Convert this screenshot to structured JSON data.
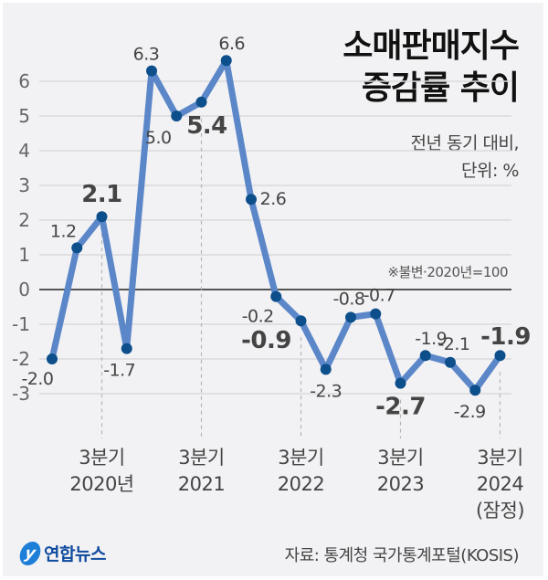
{
  "header": {
    "title_line1": "소매판매지수",
    "title_line2": "증감률 추이",
    "subtitle_line1": "전년 동기 대비,",
    "subtitle_line2": "단위: %"
  },
  "note": "※불변·2020년=100",
  "footer": {
    "logo_text": "연합뉴스",
    "logo_mark": "y",
    "source": "자료: 통계청 국가통계포털(KOSIS)"
  },
  "colors": {
    "line": "#5b87c9",
    "marker": "#0d4f8b",
    "background": "#f2f2f4",
    "gridline": "#d9d9dc",
    "zero_line": "#555555"
  },
  "chart_data": {
    "type": "line",
    "title": "소매판매지수 증감률 추이",
    "subtitle": "전년 동기 대비, 단위: %",
    "xlabel": "",
    "ylabel": "%",
    "ylim": [
      -3,
      6
    ],
    "yticks": [
      6,
      5,
      4,
      3,
      2,
      1,
      0,
      -1,
      -2,
      -3
    ],
    "grid": true,
    "annotation": "※불변·2020년=100",
    "x": [
      "2020 Q1",
      "2020 Q2",
      "2020 Q3",
      "2020 Q4",
      "2021 Q1",
      "2021 Q2",
      "2021 Q3",
      "2021 Q4",
      "2022 Q1",
      "2022 Q2",
      "2022 Q3",
      "2022 Q4",
      "2023 Q1",
      "2023 Q2",
      "2023 Q3",
      "2023 Q4",
      "2024 Q1",
      "2024 Q2",
      "2024 Q3"
    ],
    "values": [
      -2.0,
      1.2,
      2.1,
      -1.7,
      6.3,
      5.0,
      5.4,
      6.6,
      2.6,
      -0.2,
      -0.9,
      -2.3,
      -0.8,
      -0.7,
      -2.7,
      -1.9,
      -2.1,
      -2.9,
      -1.9
    ],
    "labels": [
      "-2.0",
      "1.2",
      "2.1",
      "-1.7",
      "6.3",
      "5.0",
      "5.4",
      "6.6",
      "2.6",
      "-0.2",
      "-0.9",
      "-2.3",
      "-0.8",
      "-0.7",
      "-2.7",
      "-1.9",
      "-2.1",
      "-2.9",
      "-1.9"
    ],
    "highlighted_indices": [
      2,
      6,
      10,
      14,
      18
    ],
    "x_tick_labels": [
      {
        "index": 2,
        "line1": "3분기",
        "line2": "2020년"
      },
      {
        "index": 6,
        "line1": "3분기",
        "line2": "2021"
      },
      {
        "index": 10,
        "line1": "3분기",
        "line2": "2022"
      },
      {
        "index": 14,
        "line1": "3분기",
        "line2": "2023"
      },
      {
        "index": 18,
        "line1": "3분기",
        "line2": "2024",
        "line3": "(잠정)"
      }
    ]
  }
}
